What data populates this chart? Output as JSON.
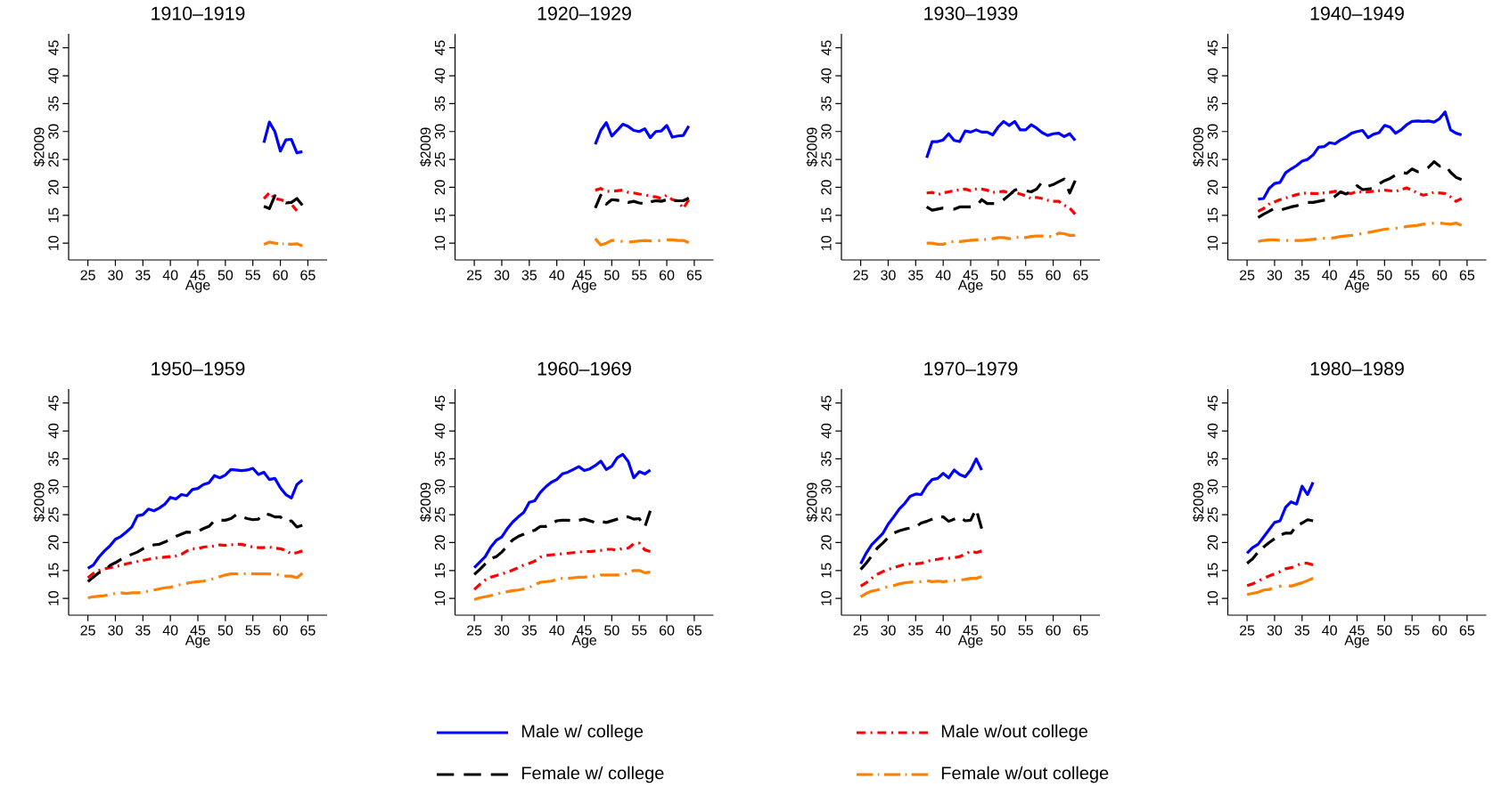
{
  "chart_data": [
    {
      "type": "line",
      "title": "1910–1919",
      "xlabel": "Age",
      "ylabel": "$2009",
      "xlim": [
        21.5,
        68.5
      ],
      "ylim": [
        7,
        47.5
      ],
      "xticks": [
        25,
        30,
        35,
        40,
        45,
        50,
        55,
        60,
        65
      ],
      "yticks": [
        10,
        15,
        20,
        25,
        30,
        35,
        40,
        45
      ],
      "legend": "bottom",
      "x": [
        57,
        58,
        59,
        60,
        61,
        62,
        63,
        64
      ],
      "series": [
        {
          "name": "Male w/ college",
          "color": "#0000ff",
          "line_style": "solid",
          "values": [
            28.0,
            31.7,
            30.0,
            26.5,
            28.5,
            28.6,
            26.2,
            26.4
          ]
        },
        {
          "name": "Male w/out college",
          "color": "#ff0000",
          "line_style": "dashdot",
          "values": [
            18.0,
            19.0,
            18.0,
            17.8,
            17.5,
            17.0,
            15.8,
            null
          ]
        },
        {
          "name": "Female w/ college",
          "color": "#000000",
          "line_style": "dashed",
          "values": [
            16.6,
            16.2,
            18.5,
            18.0,
            17.2,
            17.3,
            18.0,
            16.8
          ]
        },
        {
          "name": "Female w/out college",
          "color": "#ff7f00",
          "line_style": "longdashdot",
          "values": [
            9.8,
            10.2,
            10.0,
            9.9,
            9.9,
            9.8,
            9.9,
            9.5
          ]
        }
      ]
    },
    {
      "type": "line",
      "title": "1920–1929",
      "xlabel": "Age",
      "ylabel": "$2009",
      "xlim": [
        21.5,
        68.5
      ],
      "ylim": [
        7,
        47.5
      ],
      "xticks": [
        25,
        30,
        35,
        40,
        45,
        50,
        55,
        60,
        65
      ],
      "yticks": [
        10,
        15,
        20,
        25,
        30,
        35,
        40,
        45
      ],
      "x": [
        47,
        48,
        49,
        50,
        51,
        52,
        53,
        54,
        55,
        56,
        57,
        58,
        59,
        60,
        61,
        62,
        63,
        64
      ],
      "series": [
        {
          "color": "#0000ff",
          "line_style": "solid",
          "values": [
            27.7,
            30.2,
            31.6,
            29.2,
            30.2,
            31.3,
            30.9,
            30.2,
            30.0,
            30.5,
            28.9,
            30.0,
            30.1,
            31.1,
            29.0,
            29.2,
            29.3,
            31.0
          ]
        },
        {
          "color": "#ff0000",
          "line_style": "dashdot",
          "values": [
            19.5,
            19.8,
            19.3,
            19.3,
            19.4,
            19.5,
            19.1,
            19.0,
            18.8,
            18.7,
            18.4,
            18.3,
            18.0,
            18.6,
            17.8,
            17.6,
            16.2,
            17.8
          ]
        },
        {
          "color": "#000000",
          "line_style": "dashed",
          "values": [
            16.3,
            18.6,
            17.0,
            17.8,
            17.7,
            17.5,
            17.3,
            17.5,
            17.2,
            17.1,
            17.4,
            17.6,
            17.5,
            17.8,
            17.6,
            17.6,
            17.6,
            18.1
          ]
        },
        {
          "color": "#ff7f00",
          "line_style": "longdashdot",
          "values": [
            10.8,
            9.7,
            10.0,
            10.5,
            10.5,
            10.3,
            10.2,
            10.3,
            10.4,
            10.5,
            10.4,
            10.4,
            10.5,
            10.6,
            10.6,
            10.5,
            10.5,
            10.1
          ]
        }
      ]
    },
    {
      "type": "line",
      "title": "1930–1939",
      "xlabel": "Age",
      "ylabel": "$2009",
      "xlim": [
        21.5,
        68.5
      ],
      "ylim": [
        7,
        47.5
      ],
      "xticks": [
        25,
        30,
        35,
        40,
        45,
        50,
        55,
        60,
        65
      ],
      "yticks": [
        10,
        15,
        20,
        25,
        30,
        35,
        40,
        45
      ],
      "x": [
        37,
        38,
        39,
        40,
        41,
        42,
        43,
        44,
        45,
        46,
        47,
        48,
        49,
        50,
        51,
        52,
        53,
        54,
        55,
        56,
        57,
        58,
        59,
        60,
        61,
        62,
        63,
        64
      ],
      "series": [
        {
          "color": "#0000ff",
          "line_style": "solid",
          "values": [
            25.3,
            28.2,
            28.2,
            28.5,
            29.6,
            28.4,
            28.2,
            30.1,
            29.9,
            30.3,
            29.9,
            29.9,
            29.4,
            30.8,
            31.8,
            31.1,
            31.8,
            30.3,
            30.3,
            31.2,
            30.6,
            29.8,
            29.3,
            29.6,
            29.7,
            29.1,
            29.6,
            28.4
          ]
        },
        {
          "color": "#ff0000",
          "line_style": "dashdot",
          "values": [
            19.0,
            19.1,
            18.7,
            19.0,
            19.2,
            19.4,
            19.6,
            19.7,
            19.4,
            19.7,
            19.7,
            19.5,
            19.1,
            19.2,
            19.3,
            19.0,
            19.2,
            18.8,
            18.5,
            18.0,
            18.2,
            18.0,
            17.7,
            17.5,
            17.5,
            16.8,
            16.3,
            15.2
          ]
        },
        {
          "color": "#000000",
          "line_style": "dashed",
          "values": [
            16.5,
            15.9,
            16.1,
            16.3,
            16.2,
            16.1,
            16.5,
            16.5,
            16.5,
            16.6,
            17.8,
            17.1,
            17.1,
            17.1,
            17.8,
            18.6,
            19.5,
            19.8,
            19.4,
            19.2,
            19.7,
            21.0,
            20.2,
            20.5,
            21.0,
            21.5,
            19.0,
            21.2
          ]
        },
        {
          "color": "#ff7f00",
          "line_style": "longdashdot",
          "values": [
            10.0,
            10.0,
            9.8,
            9.8,
            10.2,
            10.3,
            10.3,
            10.4,
            10.5,
            10.6,
            10.6,
            10.7,
            10.8,
            11.0,
            11.0,
            10.8,
            11.0,
            11.1,
            11.0,
            11.2,
            11.3,
            11.3,
            11.2,
            11.2,
            11.8,
            11.7,
            11.4,
            11.4
          ]
        }
      ]
    },
    {
      "type": "line",
      "title": "1940–1949",
      "xlabel": "Age",
      "ylabel": "$2009",
      "xlim": [
        21.5,
        68.5
      ],
      "ylim": [
        7,
        47.5
      ],
      "xticks": [
        25,
        30,
        35,
        40,
        45,
        50,
        55,
        60,
        65
      ],
      "yticks": [
        10,
        15,
        20,
        25,
        30,
        35,
        40,
        45
      ],
      "x": [
        27,
        28,
        29,
        30,
        31,
        32,
        33,
        34,
        35,
        36,
        37,
        38,
        39,
        40,
        41,
        42,
        43,
        44,
        45,
        46,
        47,
        48,
        49,
        50,
        51,
        52,
        53,
        54,
        55,
        56,
        57,
        58,
        59,
        60,
        61,
        62,
        63,
        64
      ],
      "series": [
        {
          "color": "#0000ff",
          "line_style": "solid",
          "values": [
            17.9,
            18.0,
            19.8,
            20.7,
            20.9,
            22.6,
            23.3,
            23.9,
            24.7,
            25.0,
            25.8,
            27.2,
            27.3,
            28.0,
            27.8,
            28.5,
            29.0,
            29.7,
            30.0,
            30.2,
            28.9,
            29.5,
            29.8,
            31.1,
            30.8,
            29.7,
            30.3,
            31.2,
            31.8,
            31.9,
            31.8,
            31.9,
            31.7,
            32.3,
            33.5,
            30.3,
            29.7,
            29.4
          ]
        },
        {
          "color": "#ff0000",
          "line_style": "dashdot",
          "values": [
            15.7,
            16.2,
            17.0,
            17.4,
            17.8,
            18.1,
            18.4,
            18.7,
            18.9,
            19.0,
            18.9,
            18.9,
            19.0,
            19.1,
            19.3,
            19.1,
            19.0,
            18.9,
            19.3,
            19.1,
            19.2,
            19.3,
            19.4,
            19.5,
            19.4,
            19.3,
            19.6,
            19.9,
            19.5,
            19.0,
            18.6,
            18.8,
            19.1,
            19.0,
            18.9,
            18.3,
            17.5,
            18.0
          ]
        },
        {
          "color": "#000000",
          "line_style": "dashed",
          "values": [
            14.6,
            15.2,
            15.7,
            16.3,
            15.9,
            16.2,
            16.5,
            16.7,
            17.0,
            17.3,
            17.3,
            17.5,
            17.7,
            17.8,
            18.4,
            19.2,
            18.8,
            19.4,
            20.3,
            19.6,
            19.7,
            19.8,
            20.6,
            21.2,
            21.6,
            22.2,
            22.7,
            22.5,
            23.3,
            22.8,
            23.0,
            23.6,
            24.6,
            23.8,
            24.0,
            22.7,
            21.8,
            21.4
          ]
        },
        {
          "color": "#ff7f00",
          "line_style": "longdashdot",
          "values": [
            10.3,
            10.5,
            10.6,
            10.6,
            10.5,
            10.5,
            10.5,
            10.5,
            10.5,
            10.6,
            10.7,
            10.8,
            10.9,
            10.9,
            11.0,
            11.2,
            11.3,
            11.4,
            11.6,
            11.7,
            11.9,
            12.1,
            12.3,
            12.5,
            12.6,
            12.7,
            12.7,
            13.0,
            13.1,
            13.2,
            13.4,
            13.5,
            13.6,
            13.6,
            13.5,
            13.4,
            13.6,
            13.2
          ]
        }
      ]
    },
    {
      "type": "line",
      "title": "1950–1959",
      "xlabel": "Age",
      "ylabel": "$2009",
      "xlim": [
        21.5,
        68.5
      ],
      "ylim": [
        7,
        47.5
      ],
      "xticks": [
        25,
        30,
        35,
        40,
        45,
        50,
        55,
        60,
        65
      ],
      "yticks": [
        10,
        15,
        20,
        25,
        30,
        35,
        40,
        45
      ],
      "x": [
        25,
        26,
        27,
        28,
        29,
        30,
        31,
        32,
        33,
        34,
        35,
        36,
        37,
        38,
        39,
        40,
        41,
        42,
        43,
        44,
        45,
        46,
        47,
        48,
        49,
        50,
        51,
        52,
        53,
        54,
        55,
        56,
        57,
        58,
        59,
        60,
        61,
        62,
        63,
        64
      ],
      "series": [
        {
          "color": "#0000ff",
          "line_style": "solid",
          "values": [
            15.4,
            16.0,
            17.4,
            18.5,
            19.4,
            20.6,
            21.1,
            21.9,
            22.8,
            24.8,
            25.0,
            26.0,
            25.7,
            26.2,
            26.9,
            28.1,
            27.8,
            28.6,
            28.4,
            29.5,
            29.7,
            30.4,
            30.7,
            32.0,
            31.6,
            32.1,
            33.1,
            33.0,
            32.9,
            33.0,
            33.3,
            32.2,
            32.6,
            31.3,
            31.5,
            29.8,
            28.6,
            28.0,
            30.4,
            31.2
          ]
        },
        {
          "color": "#ff0000",
          "line_style": "dashdot",
          "values": [
            13.7,
            14.5,
            15.0,
            15.3,
            15.5,
            15.7,
            15.9,
            16.2,
            16.4,
            16.6,
            16.8,
            17.0,
            17.2,
            17.3,
            17.4,
            17.5,
            17.6,
            17.9,
            18.5,
            18.9,
            18.9,
            19.2,
            19.3,
            19.4,
            19.6,
            19.5,
            19.6,
            19.7,
            19.7,
            19.4,
            19.2,
            19.1,
            19.1,
            19.2,
            19.0,
            18.9,
            18.6,
            18.0,
            18.2,
            18.5
          ]
        },
        {
          "color": "#000000",
          "line_style": "dashed",
          "values": [
            13.0,
            13.8,
            14.6,
            14.9,
            15.9,
            16.4,
            17.0,
            17.5,
            17.9,
            18.3,
            18.9,
            19.3,
            19.6,
            19.7,
            20.1,
            20.6,
            21.1,
            21.5,
            21.9,
            21.8,
            22.0,
            22.5,
            22.9,
            23.9,
            24.0,
            24.0,
            24.3,
            25.0,
            24.6,
            24.3,
            24.1,
            24.2,
            25.2,
            25.0,
            24.6,
            24.6,
            23.7,
            23.9,
            22.8,
            23.1
          ]
        },
        {
          "color": "#ff7f00",
          "line_style": "longdashdot",
          "values": [
            10.1,
            10.3,
            10.4,
            10.5,
            10.7,
            10.9,
            11.0,
            10.9,
            11.0,
            11.0,
            11.1,
            11.3,
            11.5,
            11.7,
            11.9,
            12.0,
            12.3,
            12.5,
            12.7,
            12.9,
            13.0,
            13.1,
            13.3,
            13.6,
            13.9,
            14.2,
            14.4,
            14.4,
            14.3,
            14.5,
            14.4,
            14.4,
            14.4,
            14.4,
            14.3,
            14.2,
            14.0,
            14.0,
            13.7,
            14.5
          ]
        }
      ]
    },
    {
      "type": "line",
      "title": "1960–1969",
      "xlabel": "Age",
      "ylabel": "$2009",
      "xlim": [
        21.5,
        68.5
      ],
      "ylim": [
        7,
        47.5
      ],
      "xticks": [
        25,
        30,
        35,
        40,
        45,
        50,
        55,
        60,
        65
      ],
      "yticks": [
        10,
        15,
        20,
        25,
        30,
        35,
        40,
        45
      ],
      "x": [
        25,
        26,
        27,
        28,
        29,
        30,
        31,
        32,
        33,
        34,
        35,
        36,
        37,
        38,
        39,
        40,
        41,
        42,
        43,
        44,
        45,
        46,
        47,
        48,
        49,
        50,
        51,
        52,
        53,
        54,
        55,
        56,
        57
      ],
      "series": [
        {
          "color": "#0000ff",
          "line_style": "solid",
          "values": [
            15.5,
            16.5,
            17.5,
            19.2,
            20.4,
            21.0,
            22.5,
            23.7,
            24.6,
            25.4,
            27.2,
            27.5,
            29.0,
            30.0,
            30.8,
            31.3,
            32.3,
            32.6,
            33.1,
            33.6,
            32.9,
            33.2,
            33.8,
            34.6,
            33.1,
            33.7,
            35.2,
            35.8,
            34.5,
            31.6,
            32.7,
            32.3,
            33.0
          ]
        },
        {
          "color": "#ff0000",
          "line_style": "dashdot",
          "values": [
            11.6,
            12.5,
            13.3,
            13.8,
            14.1,
            14.4,
            14.7,
            15.1,
            15.5,
            16.0,
            16.3,
            16.7,
            17.4,
            17.7,
            17.8,
            17.9,
            18.0,
            18.1,
            18.2,
            18.3,
            18.4,
            18.4,
            18.5,
            18.6,
            18.8,
            18.8,
            18.6,
            19.0,
            19.0,
            19.8,
            19.9,
            18.7,
            18.4
          ]
        },
        {
          "color": "#000000",
          "line_style": "dashed",
          "values": [
            14.3,
            15.2,
            16.2,
            17.1,
            17.5,
            18.3,
            19.4,
            20.5,
            21.1,
            21.5,
            22.0,
            22.2,
            22.9,
            22.9,
            23.4,
            23.9,
            24.0,
            24.0,
            23.9,
            24.0,
            24.2,
            23.9,
            23.6,
            23.8,
            23.6,
            23.9,
            24.2,
            24.6,
            24.6,
            24.2,
            24.3,
            22.8,
            25.7
          ]
        },
        {
          "color": "#ff7f00",
          "line_style": "longdashdot",
          "values": [
            9.8,
            10.1,
            10.3,
            10.5,
            10.8,
            11.0,
            11.2,
            11.4,
            11.5,
            11.7,
            12.0,
            12.4,
            12.9,
            13.0,
            13.1,
            13.4,
            13.6,
            13.6,
            13.7,
            13.8,
            13.8,
            13.9,
            14.0,
            14.2,
            14.2,
            14.2,
            14.2,
            14.2,
            14.6,
            15.0,
            15.0,
            14.6,
            14.7
          ]
        }
      ]
    },
    {
      "type": "line",
      "title": "1970–1979",
      "xlabel": "Age",
      "ylabel": "$2009",
      "xlim": [
        21.5,
        68.5
      ],
      "ylim": [
        7,
        47.5
      ],
      "xticks": [
        25,
        30,
        35,
        40,
        45,
        50,
        55,
        60,
        65
      ],
      "yticks": [
        10,
        15,
        20,
        25,
        30,
        35,
        40,
        45
      ],
      "x": [
        25,
        26,
        27,
        28,
        29,
        30,
        31,
        32,
        33,
        34,
        35,
        36,
        37,
        38,
        39,
        40,
        41,
        42,
        43,
        44,
        45,
        46,
        47
      ],
      "series": [
        {
          "color": "#0000ff",
          "line_style": "solid",
          "values": [
            16.2,
            18.1,
            19.6,
            20.6,
            21.6,
            23.3,
            24.6,
            26.0,
            27.0,
            28.3,
            28.7,
            28.6,
            30.2,
            31.3,
            31.5,
            32.4,
            31.6,
            33.0,
            32.2,
            31.8,
            33.0,
            35.0,
            33.0
          ]
        },
        {
          "color": "#ff0000",
          "line_style": "dashdot",
          "values": [
            12.2,
            12.8,
            13.6,
            14.3,
            14.8,
            15.2,
            15.5,
            15.8,
            16.1,
            16.2,
            16.2,
            16.3,
            16.6,
            16.9,
            17.0,
            17.2,
            17.2,
            17.3,
            17.5,
            17.9,
            18.5,
            18.2,
            18.5
          ]
        },
        {
          "color": "#000000",
          "line_style": "dashed",
          "values": [
            15.2,
            16.3,
            17.6,
            19.0,
            19.9,
            20.9,
            21.7,
            22.1,
            22.4,
            22.6,
            22.8,
            23.5,
            23.8,
            24.2,
            24.6,
            24.6,
            23.8,
            24.2,
            24.6,
            23.9,
            24.0,
            26.0,
            22.5
          ]
        },
        {
          "color": "#ff7f00",
          "line_style": "longdashdot",
          "values": [
            10.3,
            10.9,
            11.3,
            11.5,
            11.9,
            12.1,
            12.3,
            12.6,
            12.8,
            12.9,
            13.0,
            13.0,
            13.2,
            13.0,
            13.1,
            13.0,
            13.1,
            13.2,
            13.3,
            13.4,
            13.6,
            13.6,
            13.9
          ]
        }
      ]
    },
    {
      "type": "line",
      "title": "1980–1989",
      "xlabel": "Age",
      "ylabel": "$2009",
      "xlim": [
        21.5,
        68.5
      ],
      "ylim": [
        7,
        47.5
      ],
      "xticks": [
        25,
        30,
        35,
        40,
        45,
        50,
        55,
        60,
        65
      ],
      "yticks": [
        10,
        15,
        20,
        25,
        30,
        35,
        40,
        45
      ],
      "x": [
        25,
        26,
        27,
        28,
        29,
        30,
        31,
        32,
        33,
        34,
        35,
        36,
        37
      ],
      "series": [
        {
          "color": "#0000ff",
          "line_style": "solid",
          "values": [
            18.1,
            19.1,
            19.7,
            21.0,
            22.3,
            23.6,
            23.9,
            26.3,
            27.3,
            26.9,
            30.1,
            28.6,
            30.8
          ]
        },
        {
          "color": "#ff0000",
          "line_style": "dashdot",
          "values": [
            12.3,
            12.6,
            13.1,
            13.6,
            14.0,
            14.4,
            14.8,
            15.3,
            15.5,
            15.9,
            16.3,
            16.3,
            16.0
          ]
        },
        {
          "color": "#000000",
          "line_style": "dashed",
          "values": [
            16.3,
            17.1,
            18.3,
            19.2,
            20.0,
            20.7,
            21.3,
            21.7,
            21.7,
            23.0,
            23.5,
            24.1,
            23.9
          ]
        },
        {
          "color": "#ff7f00",
          "line_style": "longdashdot",
          "values": [
            10.7,
            10.9,
            11.1,
            11.5,
            11.6,
            12.0,
            12.2,
            12.4,
            12.2,
            12.5,
            12.8,
            13.2,
            13.6
          ]
        }
      ]
    }
  ]
}
